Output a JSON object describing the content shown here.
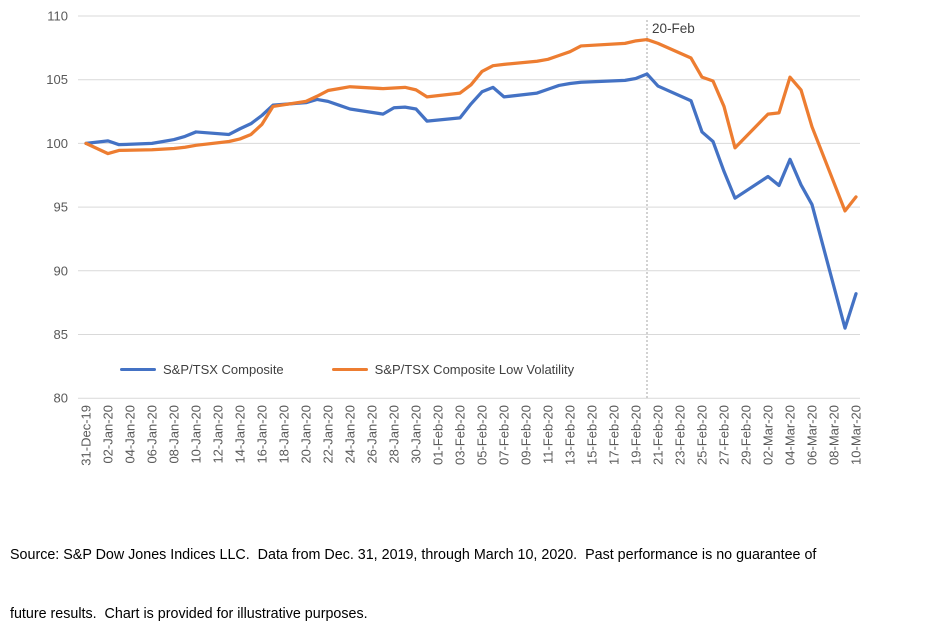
{
  "chart_data": {
    "type": "line",
    "title": "",
    "grid": true,
    "legend_position": "bottom-inside",
    "ylim": [
      80,
      110
    ],
    "y_ticks": [
      110,
      105,
      100,
      95,
      90,
      85,
      80
    ],
    "x_axis": {
      "unit": "date",
      "first_label": "31-Dec-19",
      "last_label": "10-Mar-20",
      "tick_labels": [
        "31-Dec-19",
        "02-Jan-20",
        "04-Jan-20",
        "06-Jan-20",
        "08-Jan-20",
        "10-Jan-20",
        "12-Jan-20",
        "14-Jan-20",
        "16-Jan-20",
        "18-Jan-20",
        "20-Jan-20",
        "22-Jan-20",
        "24-Jan-20",
        "26-Jan-20",
        "28-Jan-20",
        "30-Jan-20",
        "01-Feb-20",
        "03-Feb-20",
        "05-Feb-20",
        "07-Feb-20",
        "09-Feb-20",
        "11-Feb-20",
        "13-Feb-20",
        "15-Feb-20",
        "17-Feb-20",
        "19-Feb-20",
        "21-Feb-20",
        "23-Feb-20",
        "25-Feb-20",
        "27-Feb-20",
        "29-Feb-20",
        "02-Mar-20",
        "04-Mar-20",
        "06-Mar-20",
        "08-Mar-20",
        "10-Mar-20"
      ],
      "tick_day_offsets": [
        0,
        2,
        4,
        6,
        8,
        10,
        12,
        14,
        16,
        18,
        20,
        22,
        24,
        26,
        28,
        30,
        32,
        34,
        36,
        38,
        40,
        42,
        44,
        46,
        48,
        50,
        52,
        54,
        56,
        58,
        60,
        62,
        64,
        66,
        68,
        70
      ]
    },
    "annotation": {
      "text": "20-Feb",
      "day_offset": 51
    },
    "series": [
      {
        "name": "S&P/TSX Composite",
        "color": "#4472C4",
        "dates": [
          "31-Dec-19",
          "02-Jan-20",
          "03-Jan-20",
          "06-Jan-20",
          "07-Jan-20",
          "08-Jan-20",
          "09-Jan-20",
          "10-Jan-20",
          "13-Jan-20",
          "14-Jan-20",
          "15-Jan-20",
          "16-Jan-20",
          "17-Jan-20",
          "20-Jan-20",
          "21-Jan-20",
          "22-Jan-20",
          "23-Jan-20",
          "24-Jan-20",
          "27-Jan-20",
          "28-Jan-20",
          "29-Jan-20",
          "30-Jan-20",
          "31-Jan-20",
          "03-Feb-20",
          "04-Feb-20",
          "05-Feb-20",
          "06-Feb-20",
          "07-Feb-20",
          "10-Feb-20",
          "11-Feb-20",
          "12-Feb-20",
          "13-Feb-20",
          "14-Feb-20",
          "18-Feb-20",
          "19-Feb-20",
          "20-Feb-20",
          "21-Feb-20",
          "24-Feb-20",
          "25-Feb-20",
          "26-Feb-20",
          "27-Feb-20",
          "28-Feb-20",
          "02-Mar-20",
          "03-Mar-20",
          "04-Mar-20",
          "05-Mar-20",
          "06-Mar-20",
          "09-Mar-20",
          "10-Mar-20"
        ],
        "day_offsets": [
          0,
          2,
          3,
          6,
          7,
          8,
          9,
          10,
          13,
          14,
          15,
          16,
          17,
          20,
          21,
          22,
          23,
          24,
          27,
          28,
          29,
          30,
          31,
          34,
          35,
          36,
          37,
          38,
          41,
          42,
          43,
          44,
          45,
          49,
          50,
          51,
          52,
          55,
          56,
          57,
          58,
          59,
          62,
          63,
          64,
          65,
          66,
          69,
          70
        ],
        "values": [
          100,
          100.2,
          99.9,
          100,
          100.15,
          100.3,
          100.55,
          100.9,
          100.7,
          101.15,
          101.55,
          102.2,
          103,
          103.2,
          103.45,
          103.3,
          103,
          102.7,
          102.3,
          102.8,
          102.85,
          102.7,
          101.75,
          102,
          103.1,
          104.05,
          104.4,
          103.65,
          103.95,
          104.25,
          104.55,
          104.7,
          104.8,
          104.95,
          105.1,
          105.45,
          104.5,
          103.35,
          100.9,
          100.15,
          97.8,
          95.7,
          97.4,
          96.7,
          98.75,
          96.75,
          95.2,
          85.5,
          88.2
        ]
      },
      {
        "name": "S&P/TSX Composite Low Volatility",
        "color": "#ED7D31",
        "dates": [
          "31-Dec-19",
          "02-Jan-20",
          "03-Jan-20",
          "06-Jan-20",
          "07-Jan-20",
          "08-Jan-20",
          "09-Jan-20",
          "10-Jan-20",
          "13-Jan-20",
          "14-Jan-20",
          "15-Jan-20",
          "16-Jan-20",
          "17-Jan-20",
          "20-Jan-20",
          "21-Jan-20",
          "22-Jan-20",
          "23-Jan-20",
          "24-Jan-20",
          "27-Jan-20",
          "28-Jan-20",
          "29-Jan-20",
          "30-Jan-20",
          "31-Jan-20",
          "03-Feb-20",
          "04-Feb-20",
          "05-Feb-20",
          "06-Feb-20",
          "07-Feb-20",
          "10-Feb-20",
          "11-Feb-20",
          "12-Feb-20",
          "13-Feb-20",
          "14-Feb-20",
          "18-Feb-20",
          "19-Feb-20",
          "20-Feb-20",
          "21-Feb-20",
          "24-Feb-20",
          "25-Feb-20",
          "26-Feb-20",
          "27-Feb-20",
          "28-Feb-20",
          "02-Mar-20",
          "03-Mar-20",
          "04-Mar-20",
          "05-Mar-20",
          "06-Mar-20",
          "09-Mar-20",
          "10-Mar-20"
        ],
        "day_offsets": [
          0,
          2,
          3,
          6,
          7,
          8,
          9,
          10,
          13,
          14,
          15,
          16,
          17,
          20,
          21,
          22,
          23,
          24,
          27,
          28,
          29,
          30,
          31,
          34,
          35,
          36,
          37,
          38,
          41,
          42,
          43,
          44,
          45,
          49,
          50,
          51,
          52,
          55,
          56,
          57,
          58,
          59,
          62,
          63,
          64,
          65,
          66,
          69,
          70
        ],
        "values": [
          100,
          99.2,
          99.45,
          99.5,
          99.55,
          99.6,
          99.7,
          99.85,
          100.15,
          100.35,
          100.7,
          101.5,
          102.9,
          103.3,
          103.7,
          104.15,
          104.3,
          104.45,
          104.3,
          104.35,
          104.4,
          104.2,
          103.65,
          103.95,
          104.6,
          105.65,
          106.1,
          106.2,
          106.45,
          106.6,
          106.9,
          107.2,
          107.65,
          107.85,
          108.05,
          108.15,
          107.85,
          106.7,
          105.2,
          104.9,
          102.9,
          99.65,
          102.3,
          102.4,
          105.2,
          104.2,
          101.3,
          94.7,
          95.8
        ]
      }
    ],
    "colors": {
      "gridline": "#D9D9D9",
      "axis_label": "#595959",
      "annotation_line": "#A6A6A6",
      "annotation_text": "#404040"
    }
  },
  "legend": {
    "items": [
      {
        "label": "S&P/TSX Composite",
        "color": "#4472C4"
      },
      {
        "label": "S&P/TSX Composite Low Volatility",
        "color": "#ED7D31"
      }
    ]
  },
  "footer": {
    "line1": "Source: S&P Dow Jones Indices LLC.  Data from Dec. 31, 2019, through March 10, 2020.  Past performance is no guarantee of",
    "line2": "future results.  Chart is provided for illustrative purposes."
  }
}
